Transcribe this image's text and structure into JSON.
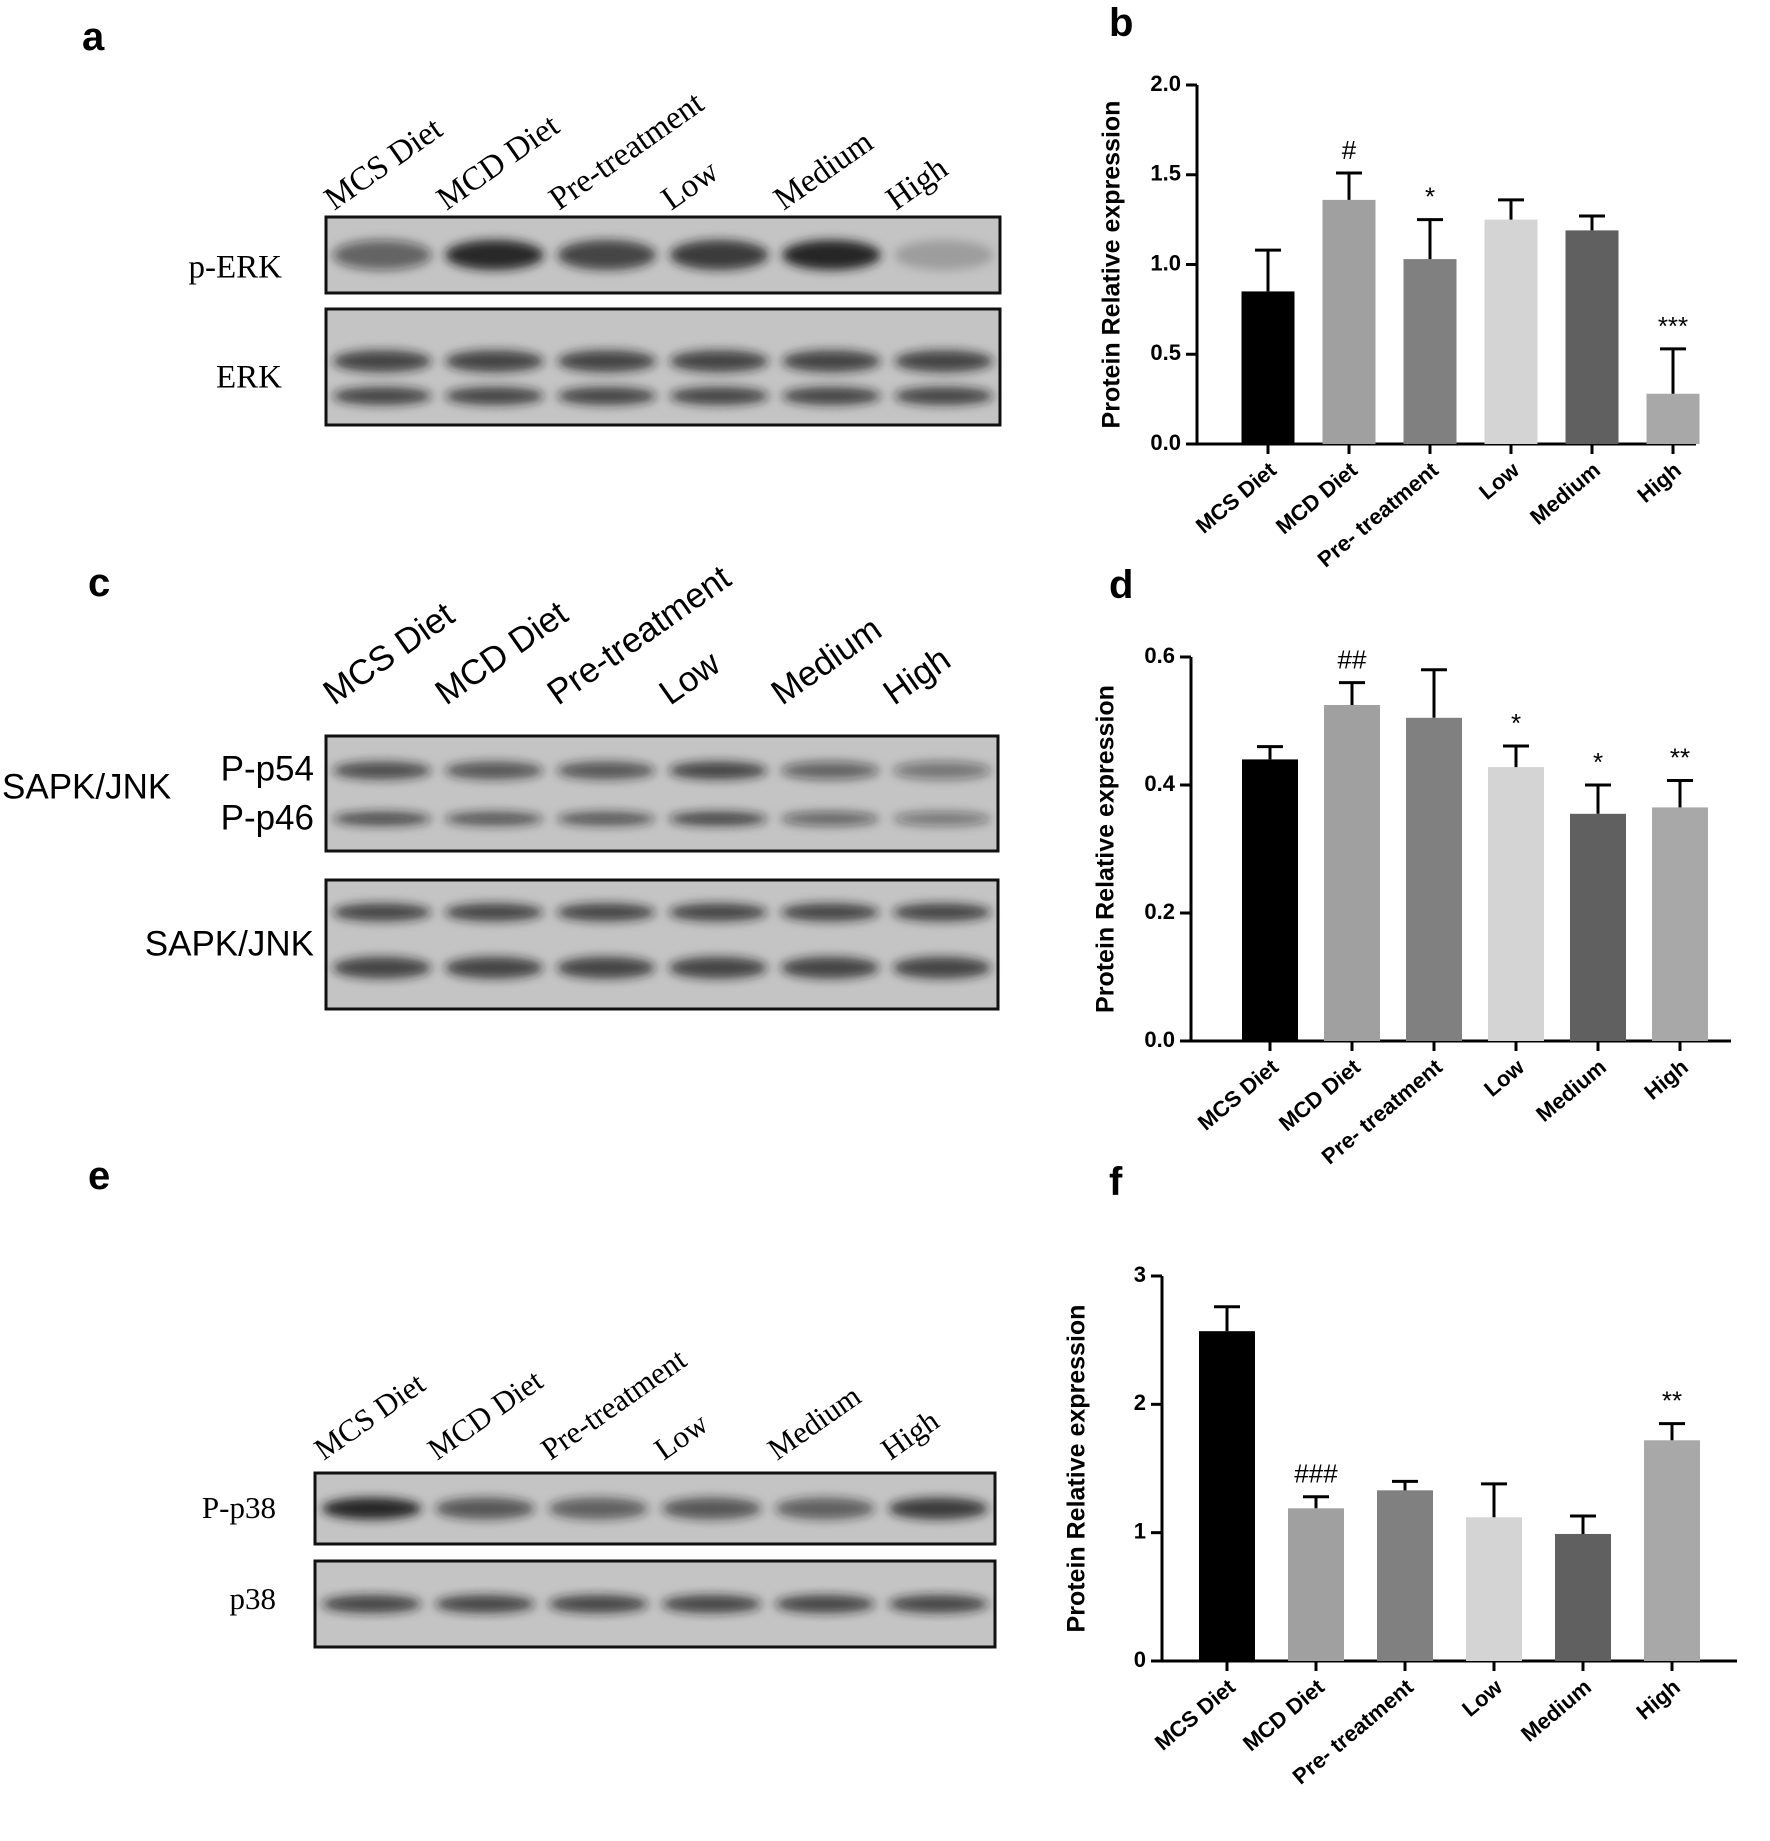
{
  "panels": [
    "a",
    "b",
    "c",
    "d",
    "e",
    "f"
  ],
  "blots": [
    {
      "lanes": [
        "MCS Diet",
        "MCD Diet",
        "Pre-treatment",
        "Low",
        "Medium",
        "High"
      ],
      "boxes": [
        {
          "labels": [
            "p-ERK"
          ]
        },
        {
          "labels": [
            "ERK"
          ]
        }
      ]
    },
    {
      "lanes": [
        "MCS Diet",
        "MCD Diet",
        "Pre-treatment",
        "Low",
        "Medium",
        "High"
      ],
      "group": "SAPK/JNK",
      "boxes": [
        {
          "labels": [
            "P-p54",
            "P-p46"
          ]
        },
        {
          "labels": [
            "SAPK/JNK"
          ]
        }
      ]
    },
    {
      "lanes": [
        "MCS Diet",
        "MCD Diet",
        "Pre-treatment",
        "Low",
        "Medium",
        "High"
      ],
      "boxes": [
        {
          "labels": [
            "P-p38"
          ]
        },
        {
          "labels": [
            "p38"
          ]
        }
      ]
    }
  ],
  "chart_data": [
    {
      "type": "bar",
      "y_label": "Protein Relative expression",
      "categories": [
        "MCS Diet",
        "MCD Diet",
        "Pre- treatment",
        "Low",
        "Medium",
        "High"
      ],
      "values": [
        0.85,
        1.36,
        1.03,
        1.25,
        1.19,
        0.28
      ],
      "errors": [
        0.23,
        0.15,
        0.22,
        0.11,
        0.08,
        0.25
      ],
      "annotations": [
        null,
        "#",
        "*",
        null,
        null,
        "***"
      ],
      "colors": [
        "#000000",
        "#a0a0a0",
        "#808080",
        "#d4d4d4",
        "#606060",
        "#a8a8a8"
      ],
      "ylim": [
        0,
        2
      ],
      "yticks": [
        {
          "value": 0,
          "label": "0.0"
        },
        0.5,
        {
          "value": 1,
          "label": "1.0"
        },
        1.5,
        {
          "value": 2,
          "label": "2.0"
        }
      ]
    },
    {
      "type": "bar",
      "y_label": "Protein Relative expression",
      "categories": [
        "MCS Diet",
        "MCD Diet",
        "Pre- treatment",
        "Low",
        "Medium",
        "High"
      ],
      "values": [
        0.44,
        0.525,
        0.505,
        0.428,
        0.355,
        0.365
      ],
      "errors": [
        0.02,
        0.035,
        0.075,
        0.033,
        0.045,
        0.042
      ],
      "annotations": [
        null,
        "##",
        null,
        "*",
        "*",
        "**"
      ],
      "colors": [
        "#000000",
        "#a0a0a0",
        "#808080",
        "#d4d4d4",
        "#606060",
        "#a8a8a8"
      ],
      "ylim": [
        0,
        0.6
      ],
      "yticks": [
        {
          "value": 0,
          "label": "0.0"
        },
        0.2,
        0.4,
        0.6
      ]
    },
    {
      "type": "bar",
      "y_label": "Protein Relative expression",
      "categories": [
        "MCS Diet",
        "MCD Diet",
        "Pre- treatment",
        "Low",
        "Medium",
        "High"
      ],
      "values": [
        2.57,
        1.19,
        1.33,
        1.12,
        0.99,
        1.72
      ],
      "errors": [
        0.19,
        0.09,
        0.07,
        0.26,
        0.14,
        0.13
      ],
      "annotations": [
        null,
        "###",
        null,
        null,
        null,
        "**"
      ],
      "colors": [
        "#000000",
        "#a0a0a0",
        "#808080",
        "#d4d4d4",
        "#606060",
        "#a8a8a8"
      ],
      "ylim": [
        0,
        3
      ],
      "yticks": [
        0,
        1,
        2,
        3
      ]
    }
  ]
}
